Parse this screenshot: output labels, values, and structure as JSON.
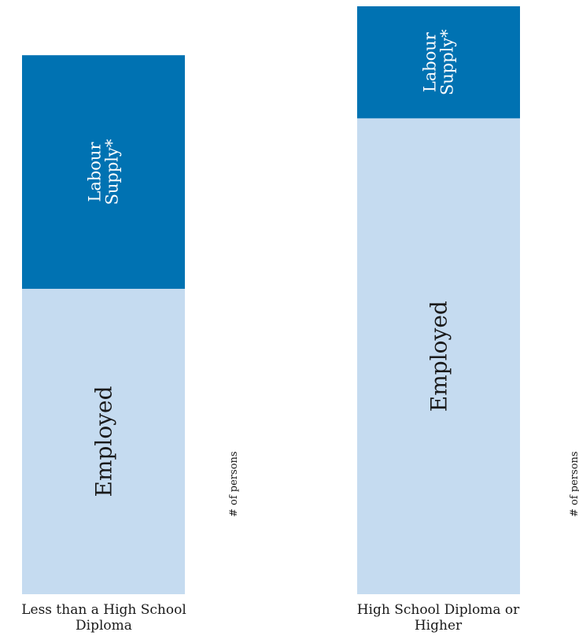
{
  "chart_data": {
    "type": "bar",
    "stacked": true,
    "categories": [
      "Less than a High School Diploma",
      "High School Diploma or Higher"
    ],
    "series": [
      {
        "name": "Employed",
        "values": [
          387,
          603
        ],
        "color": "#c5dbf0"
      },
      {
        "name": "Labour Supply*",
        "values": [
          296,
          142
        ],
        "color": "#0072b2"
      }
    ],
    "ylabel": "# of persons",
    "ylim": [
      0,
      745
    ],
    "grid": false,
    "legend": "none"
  }
}
